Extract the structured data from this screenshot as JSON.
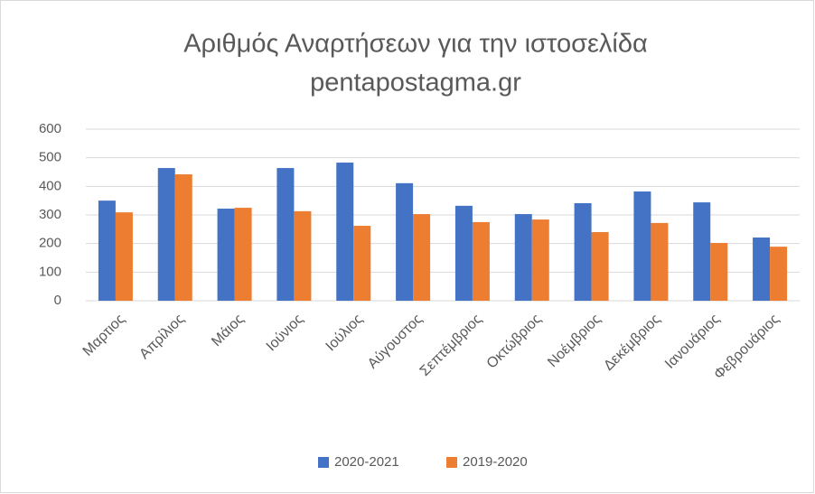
{
  "chart_data": {
    "type": "bar",
    "title": "Αριθμός Αναρτήσεων για την ιστοσελίδα",
    "subtitle": "pentapostagma.gr",
    "categories": [
      "Μαρτιος",
      "Απρίλιος",
      "Μάιος",
      "Ιούνιος",
      "Ιούλιος",
      "Αύγουστος",
      "Σεπτέμβριος",
      "Οκτώβριος",
      "Νοέμβριος",
      "Δεκέμβριος",
      "Ιανουάριος",
      "Φεβρουάριος"
    ],
    "series": [
      {
        "name": "2020-2021",
        "color": "#4472c4",
        "values": [
          350,
          464,
          322,
          464,
          483,
          411,
          332,
          303,
          341,
          382,
          344,
          221
        ]
      },
      {
        "name": "2019-2020",
        "color": "#ed7d31",
        "values": [
          309,
          442,
          325,
          313,
          262,
          303,
          275,
          284,
          240,
          272,
          202,
          189
        ]
      }
    ],
    "ylim": [
      0,
      600
    ],
    "yticks": [
      0,
      100,
      200,
      300,
      400,
      500,
      600
    ],
    "grid": true,
    "legend": "bottom"
  }
}
